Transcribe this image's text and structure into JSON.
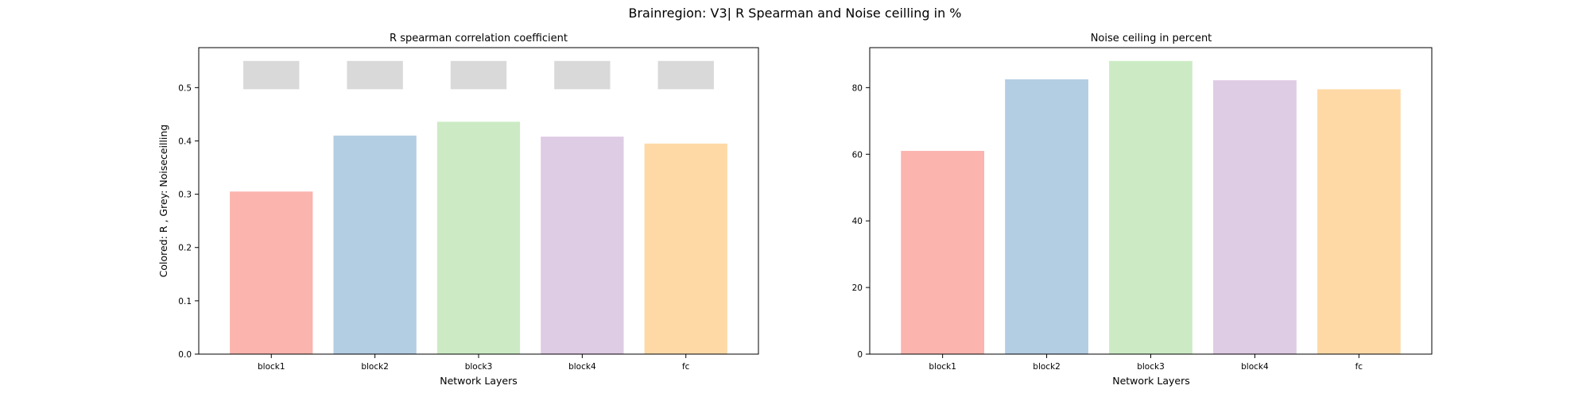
{
  "suptitle": "Brainregion: V3| R Spearman and Noise ceilling in %",
  "chart_data": [
    {
      "type": "bar",
      "title": "R spearman correlation coefficient",
      "xlabel": "Network Layers",
      "ylabel": "Colored: R , Grey: Noiseceilling",
      "categories": [
        "block1",
        "block2",
        "block3",
        "block4",
        "fc"
      ],
      "ylim": [
        0,
        0.575
      ],
      "yticks": [
        "0.0",
        "0.1",
        "0.2",
        "0.3",
        "0.4",
        "0.5"
      ],
      "yticks_values": [
        0,
        0.1,
        0.2,
        0.3,
        0.4,
        0.5
      ],
      "series": [
        {
          "values": [
            0.305,
            0.41,
            0.436,
            0.408,
            0.395
          ]
        },
        {
          "values": [
            0.55,
            0.55,
            0.55,
            0.55,
            0.55
          ],
          "bottom": 0.497
        }
      ],
      "colors": [
        "#fbb4ae",
        "#b3cde3",
        "#ccebc5",
        "#decbe4",
        "#fed9a6"
      ],
      "noise_color": "#d9d9d9",
      "grid": false
    },
    {
      "type": "bar",
      "title": "Noise ceiling in percent",
      "xlabel": "Network Layers",
      "ylabel": "",
      "categories": [
        "block1",
        "block2",
        "block3",
        "block4",
        "fc"
      ],
      "ylim": [
        0,
        92
      ],
      "yticks": [
        "0",
        "20",
        "40",
        "60",
        "80"
      ],
      "yticks_values": [
        0,
        20,
        40,
        60,
        80
      ],
      "series": [
        {
          "values": [
            61,
            82.5,
            88,
            82.2,
            79.5
          ]
        }
      ],
      "colors": [
        "#fbb4ae",
        "#b3cde3",
        "#ccebc5",
        "#decbe4",
        "#fed9a6"
      ],
      "grid": false
    }
  ]
}
